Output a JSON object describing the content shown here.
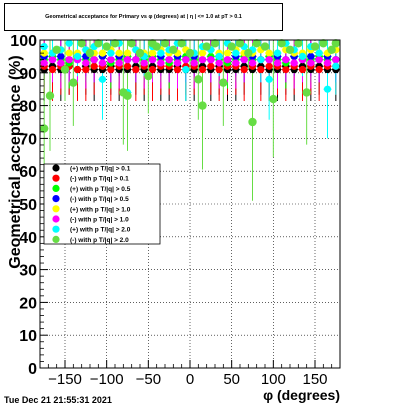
{
  "chart_data": {
    "type": "scatter",
    "title": "Geometrical acceptance for Primary vs φ (degrees) at | η | <= 1.0 at pT > 0.1",
    "xlabel": "φ (degrees)",
    "ylabel": "Geometrical acceptance (%)",
    "xlim": [
      -180,
      180
    ],
    "ylim": [
      0,
      100
    ],
    "x_ticks": [
      "-150",
      "-100",
      "-50",
      "0",
      "50",
      "100",
      "150"
    ],
    "x_tick_values": [
      -150,
      -100,
      -50,
      0,
      50,
      100,
      150
    ],
    "y_ticks": [
      "0",
      "10",
      "20",
      "30",
      "40",
      "50",
      "60",
      "70",
      "80",
      "90",
      "100"
    ],
    "y_tick_values": [
      0,
      10,
      20,
      30,
      40,
      50,
      60,
      70,
      80,
      90,
      100
    ],
    "grid": true,
    "legend_position": "left-middle",
    "series": [
      {
        "name": "(+) with p T/|q| > 0.1",
        "color": "#000000",
        "x": [
          -175,
          -165,
          -155,
          -145,
          -135,
          -125,
          -115,
          -105,
          -95,
          -85,
          -75,
          -65,
          -55,
          -45,
          -35,
          -25,
          -15,
          -5,
          5,
          15,
          25,
          35,
          45,
          55,
          65,
          75,
          85,
          95,
          105,
          115,
          125,
          135,
          145,
          155,
          165,
          175
        ],
        "y": [
          91,
          92,
          91,
          92,
          91,
          92,
          91,
          91,
          92,
          91,
          91,
          92,
          91,
          92,
          91,
          91,
          92,
          91,
          91,
          92,
          91,
          92,
          91,
          91,
          92,
          91,
          92,
          91,
          91,
          92,
          91,
          92,
          91,
          92,
          91,
          91
        ]
      },
      {
        "name": "(-) with p T/|q| > 0.1",
        "color": "#ff0000",
        "x": [
          -175,
          -165,
          -155,
          -145,
          -135,
          -125,
          -115,
          -105,
          -95,
          -85,
          -75,
          -65,
          -55,
          -45,
          -35,
          -25,
          -15,
          -5,
          5,
          15,
          25,
          35,
          45,
          55,
          65,
          75,
          85,
          95,
          105,
          115,
          125,
          135,
          145,
          155,
          165,
          175
        ],
        "y": [
          92,
          91,
          92,
          92,
          91,
          91,
          92,
          92,
          91,
          92,
          92,
          91,
          92,
          91,
          92,
          92,
          91,
          92,
          92,
          91,
          92,
          91,
          92,
          92,
          91,
          92,
          91,
          92,
          92,
          91,
          92,
          91,
          92,
          91,
          92,
          92
        ]
      },
      {
        "name": "(+) with p T/|q| > 0.5",
        "color": "#00ff00",
        "x": [
          -175,
          -165,
          -155,
          -145,
          -135,
          -125,
          -115,
          -105,
          -95,
          -85,
          -75,
          -65,
          -55,
          -45,
          -35,
          -25,
          -15,
          -5,
          5,
          15,
          25,
          35,
          45,
          55,
          65,
          75,
          85,
          95,
          105,
          115,
          125,
          135,
          145,
          155,
          165,
          175
        ],
        "y": [
          94,
          95,
          94,
          93,
          95,
          94,
          94,
          95,
          93,
          94,
          95,
          94,
          94,
          95,
          94,
          93,
          94,
          95,
          94,
          94,
          95,
          94,
          93,
          94,
          95,
          94,
          94,
          95,
          94,
          93,
          95,
          94,
          94,
          95,
          94,
          94
        ]
      },
      {
        "name": "(-) with p T/|q| > 0.5",
        "color": "#0000ff",
        "x": [
          -175,
          -165,
          -155,
          -145,
          -135,
          -125,
          -115,
          -105,
          -95,
          -85,
          -75,
          -65,
          -55,
          -45,
          -35,
          -25,
          -15,
          -5,
          5,
          15,
          25,
          35,
          45,
          55,
          65,
          75,
          85,
          95,
          105,
          115,
          125,
          135,
          145,
          155,
          165,
          175
        ],
        "y": [
          95,
          94,
          95,
          94,
          94,
          95,
          94,
          95,
          94,
          95,
          94,
          94,
          95,
          94,
          95,
          94,
          95,
          94,
          95,
          94,
          94,
          95,
          94,
          95,
          94,
          95,
          94,
          94,
          95,
          94,
          95,
          94,
          95,
          94,
          95,
          94
        ]
      },
      {
        "name": "(+) with p T/|q| > 1.0",
        "color": "#ffff00",
        "x": [
          -175,
          -165,
          -155,
          -145,
          -135,
          -125,
          -115,
          -105,
          -95,
          -85,
          -75,
          -65,
          -55,
          -45,
          -35,
          -25,
          -15,
          -5,
          5,
          15,
          25,
          35,
          45,
          55,
          65,
          75,
          85,
          95,
          105,
          115,
          125,
          135,
          145,
          155,
          165,
          175
        ],
        "y": [
          96,
          96,
          97,
          96,
          96,
          97,
          96,
          96,
          97,
          96,
          96,
          97,
          96,
          96,
          97,
          96,
          96,
          97,
          96,
          96,
          97,
          96,
          96,
          97,
          96,
          96,
          97,
          96,
          96,
          97,
          96,
          96,
          97,
          96,
          96,
          97
        ]
      },
      {
        "name": "(-) with p T/|q| > 1.0",
        "color": "#ff00ff",
        "x": [
          -175,
          -165,
          -155,
          -145,
          -135,
          -125,
          -115,
          -105,
          -95,
          -85,
          -75,
          -65,
          -55,
          -45,
          -35,
          -25,
          -15,
          -5,
          5,
          15,
          25,
          35,
          45,
          55,
          65,
          75,
          85,
          95,
          105,
          115,
          125,
          135,
          145,
          155,
          165,
          175
        ],
        "y": [
          93,
          94,
          93,
          94,
          94,
          93,
          94,
          93,
          94,
          93,
          94,
          94,
          93,
          94,
          93,
          94,
          93,
          94,
          93,
          94,
          94,
          93,
          94,
          93,
          94,
          93,
          94,
          94,
          93,
          94,
          93,
          94,
          93,
          94,
          93,
          94
        ]
      },
      {
        "name": "(+) with p T/|q| > 2.0",
        "color": "#00ffff",
        "x": [
          -175,
          -165,
          -155,
          -145,
          -135,
          -125,
          -115,
          -105,
          -95,
          -85,
          -75,
          -65,
          -55,
          -45,
          -35,
          -25,
          -15,
          -5,
          5,
          15,
          25,
          35,
          45,
          55,
          65,
          75,
          85,
          95,
          105,
          115,
          125,
          135,
          145,
          155,
          165,
          175
        ],
        "y": [
          98,
          96,
          97,
          99,
          95,
          97,
          98,
          88,
          96,
          99,
          84,
          97,
          95,
          98,
          96,
          97,
          99,
          91,
          96,
          98,
          97,
          95,
          99,
          96,
          98,
          97,
          94,
          88,
          96,
          99,
          97,
          95,
          98,
          96,
          85,
          92
        ]
      },
      {
        "name": "(-) with p T/|q| > 2.0",
        "color": "#66dd44",
        "x": [
          -175,
          -168,
          -160,
          -150,
          -140,
          -130,
          -120,
          -110,
          -100,
          -90,
          -80,
          -75,
          -70,
          -60,
          -50,
          -45,
          -40,
          -30,
          -20,
          -10,
          0,
          10,
          15,
          20,
          30,
          40,
          50,
          60,
          70,
          75,
          80,
          90,
          100,
          110,
          120,
          130,
          140,
          150,
          160,
          170,
          175
        ],
        "y": [
          73,
          83,
          97,
          91,
          87,
          99,
          96,
          99,
          98,
          99,
          84,
          83,
          99,
          96,
          89,
          99,
          98,
          99,
          97,
          99,
          96,
          88,
          80,
          98,
          99,
          87,
          98,
          99,
          96,
          75,
          99,
          98,
          82,
          99,
          97,
          99,
          84,
          98,
          99,
          97,
          99
        ]
      }
    ]
  },
  "footer": {
    "timestamp": "Tue Dec 21 21:55:31 2021"
  }
}
